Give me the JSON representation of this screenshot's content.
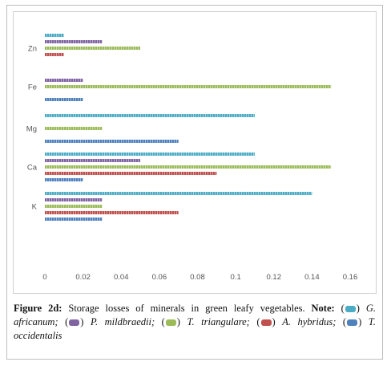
{
  "chart_data": {
    "type": "bar",
    "orientation": "horizontal",
    "categories": [
      "K",
      "Ca",
      "Mg",
      "Fe",
      "Zn"
    ],
    "series": [
      {
        "name": "T. occidentalis",
        "color": "#4f81bd",
        "values": [
          0.03,
          0.02,
          0.07,
          0.02,
          null
        ]
      },
      {
        "name": "A. hybridus",
        "color": "#c0504d",
        "values": [
          0.07,
          0.09,
          null,
          null,
          0.01
        ]
      },
      {
        "name": "T. triangulare",
        "color": "#9bbb59",
        "values": [
          0.03,
          0.15,
          0.03,
          0.15,
          0.05
        ]
      },
      {
        "name": "P. mildbraedii",
        "color": "#8064a2",
        "values": [
          0.03,
          0.05,
          null,
          0.02,
          0.03
        ]
      },
      {
        "name": "G. africanum",
        "color": "#4bacc6",
        "values": [
          0.14,
          0.11,
          0.11,
          null,
          0.01
        ]
      }
    ],
    "xticks": [
      "0",
      "0.02",
      "0.04",
      "0.06",
      "0.08",
      "0.1",
      "0.12",
      "0.14",
      "0.16"
    ],
    "xlim": [
      0,
      0.16
    ],
    "grid": false,
    "legend": "caption"
  },
  "caption": {
    "label": "Figure 2d:",
    "text": " Storage losses of minerals in green leafy vegetables. ",
    "note_label": "Note:",
    "legend_items": [
      {
        "color": "#4bacc6",
        "text": "G. africanum;"
      },
      {
        "color": "#8064a2",
        "text": "P. mildbraedii;"
      },
      {
        "color": "#9bbb59",
        "text": "T. triangulare;"
      },
      {
        "color": "#c0504d",
        "text": "A. hybridus;"
      },
      {
        "color": "#4f81bd",
        "text": "T. occidentalis"
      }
    ]
  }
}
